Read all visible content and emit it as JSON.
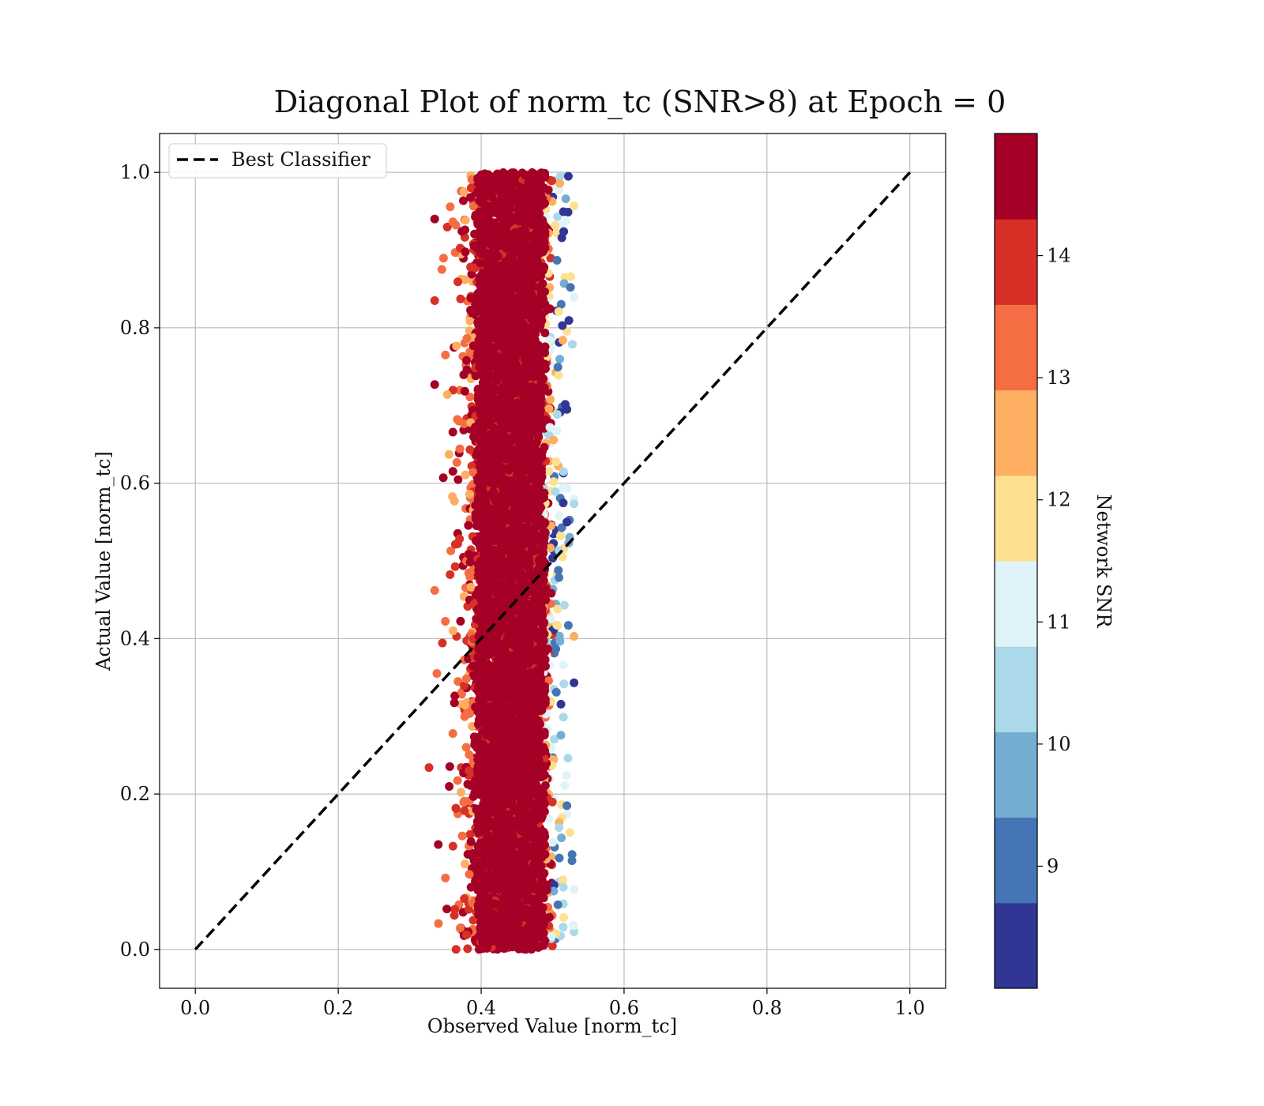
{
  "chart_data": {
    "type": "scatter",
    "title": "Diagonal Plot of norm_tc (SNR>8) at Epoch = 0",
    "xlabel": "Observed Value [norm_tc]",
    "ylabel": "Actual Value [norm_tc]",
    "xlim": [
      -0.05,
      1.05
    ],
    "ylim": [
      -0.05,
      1.05
    ],
    "x_ticks": [
      0.0,
      0.2,
      0.4,
      0.6,
      0.8,
      1.0
    ],
    "y_ticks": [
      0.0,
      0.2,
      0.4,
      0.6,
      0.8,
      1.0
    ],
    "x_tick_labels": [
      "0.0",
      "0.2",
      "0.4",
      "0.6",
      "0.8",
      "1.0"
    ],
    "y_tick_labels": [
      "0.0",
      "0.2",
      "0.4",
      "0.6",
      "0.8",
      "1.0"
    ],
    "grid": true,
    "legend": {
      "position": "top-left",
      "entries": [
        "Best Classifier"
      ]
    },
    "reference_line": {
      "name": "Best Classifier",
      "style": "dashed",
      "color": "#000000",
      "x": [
        0.0,
        1.0
      ],
      "y": [
        0.0,
        1.0
      ]
    },
    "scatter_cloud": {
      "y_range": [
        0.0,
        1.0
      ],
      "x_range_observed": [
        0.33,
        0.53
      ],
      "x_center": 0.44,
      "description_color": "network SNR"
    },
    "sample_points": [
      {
        "x": 0.335,
        "y": 0.94,
        "snr": 14.6
      },
      {
        "x": 0.345,
        "y": 0.875,
        "snr": 13.2
      },
      {
        "x": 0.335,
        "y": 0.835,
        "snr": 14.2
      },
      {
        "x": 0.35,
        "y": 0.765,
        "snr": 13.1
      },
      {
        "x": 0.335,
        "y": 0.727,
        "snr": 14.4
      },
      {
        "x": 0.355,
        "y": 0.637,
        "snr": 12.6
      },
      {
        "x": 0.347,
        "y": 0.607,
        "snr": 14.7
      },
      {
        "x": 0.335,
        "y": 0.462,
        "snr": 13.3
      },
      {
        "x": 0.327,
        "y": 0.234,
        "snr": 14.0
      },
      {
        "x": 0.34,
        "y": 0.135,
        "snr": 14.5
      },
      {
        "x": 0.35,
        "y": 0.092,
        "snr": 13.1
      },
      {
        "x": 0.352,
        "y": 0.052,
        "snr": 14.7
      },
      {
        "x": 0.522,
        "y": 0.995,
        "snr": 8.4
      },
      {
        "x": 0.525,
        "y": 0.852,
        "snr": 9.2
      },
      {
        "x": 0.52,
        "y": 0.695,
        "snr": 8.6
      },
      {
        "x": 0.52,
        "y": 0.55,
        "snr": 8.7
      },
      {
        "x": 0.522,
        "y": 0.417,
        "snr": 8.9
      },
      {
        "x": 0.52,
        "y": 0.185,
        "snr": 9.3
      },
      {
        "x": 0.515,
        "y": 0.08,
        "snr": 10.3
      }
    ],
    "colorbar": {
      "label": "Network SNR",
      "colormap": "RdYlBu_r (discrete, 10 levels)",
      "range": [
        8.0,
        15.0
      ],
      "ticks": [
        9,
        10,
        11,
        12,
        13,
        14
      ],
      "tick_labels": [
        "9",
        "10",
        "11",
        "12",
        "13",
        "14"
      ],
      "colors": [
        "#313695",
        "#4575b4",
        "#74add1",
        "#abd9e9",
        "#e0f3f8",
        "#fee090",
        "#fdae61",
        "#f46d43",
        "#d73027",
        "#a50026"
      ]
    }
  }
}
